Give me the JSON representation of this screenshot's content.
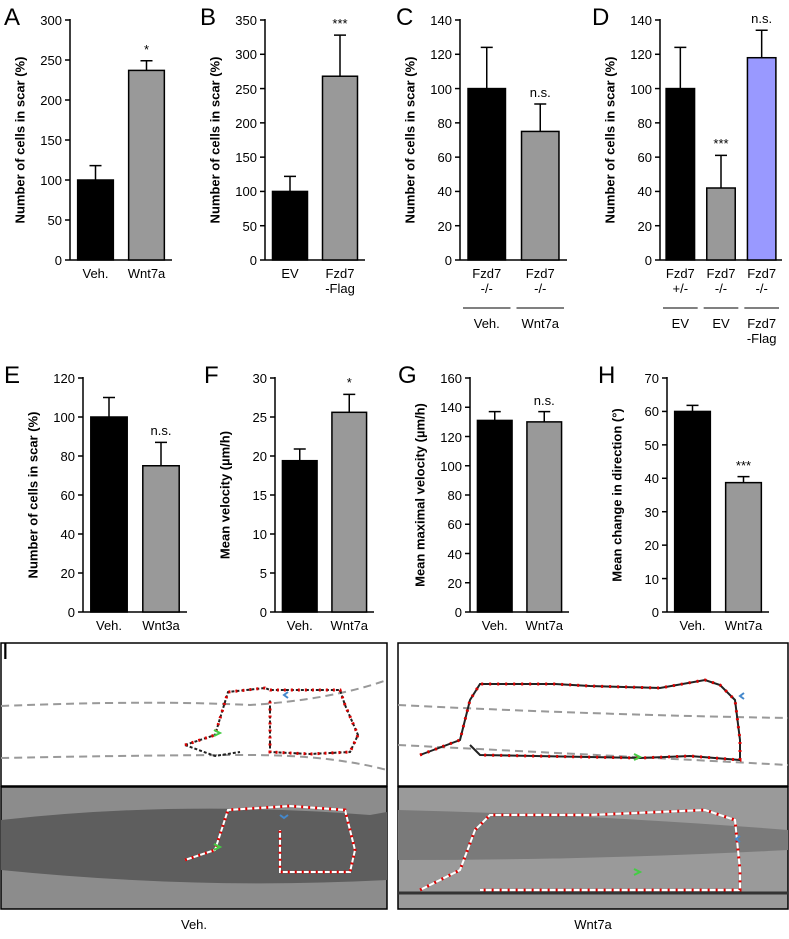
{
  "chart_data": [
    {
      "type": "bar",
      "panel": "A",
      "ylabel": "Number of cells in scar (%)",
      "categories": [
        "Veh.",
        "Wnt7a"
      ],
      "values": [
        100,
        237
      ],
      "errors": [
        18,
        12
      ],
      "annotations": [
        null,
        "*"
      ],
      "colors": [
        "#000000",
        "#999999"
      ],
      "ylim": [
        0,
        300
      ],
      "yticks": [
        0,
        50,
        100,
        150,
        200,
        250,
        300
      ]
    },
    {
      "type": "bar",
      "panel": "B",
      "ylabel": "Number of cells in scar (%)",
      "categories": [
        "EV",
        "Fzd7\n-Flag"
      ],
      "values": [
        100,
        268
      ],
      "errors": [
        22,
        60
      ],
      "annotations": [
        null,
        "***"
      ],
      "colors": [
        "#000000",
        "#999999"
      ],
      "ylim": [
        0,
        350
      ],
      "yticks": [
        0,
        50,
        100,
        150,
        200,
        250,
        300,
        350
      ]
    },
    {
      "type": "bar",
      "panel": "C",
      "ylabel": "Number of cells in scar (%)",
      "categories": [
        "Fzd7\n-/-",
        "Fzd7\n-/-"
      ],
      "groups": [
        "Veh.",
        "Wnt7a"
      ],
      "values": [
        100,
        75
      ],
      "errors": [
        24,
        16
      ],
      "annotations": [
        null,
        "n.s."
      ],
      "colors": [
        "#000000",
        "#999999"
      ],
      "ylim": [
        0,
        140
      ],
      "yticks": [
        0,
        20,
        40,
        60,
        80,
        100,
        120,
        140
      ]
    },
    {
      "type": "bar",
      "panel": "D",
      "ylabel": "Number of cells in scar (%)",
      "categories": [
        "Fzd7\n+/-",
        "Fzd7\n-/-",
        "Fzd7\n-/-"
      ],
      "groups": [
        "EV",
        "EV",
        "Fzd7\n-Flag"
      ],
      "values": [
        100,
        42,
        118
      ],
      "errors": [
        24,
        19,
        16
      ],
      "annotations": [
        null,
        "***",
        "n.s."
      ],
      "colors": [
        "#000000",
        "#999999",
        "#9999ff"
      ],
      "ylim": [
        0,
        140
      ],
      "yticks": [
        0,
        20,
        40,
        60,
        80,
        100,
        120,
        140
      ]
    },
    {
      "type": "bar",
      "panel": "E",
      "ylabel": "Number of cells in scar (%)",
      "categories": [
        "Veh.",
        "Wnt3a"
      ],
      "values": [
        100,
        75
      ],
      "errors": [
        10,
        12
      ],
      "annotations": [
        null,
        "n.s."
      ],
      "colors": [
        "#000000",
        "#999999"
      ],
      "ylim": [
        0,
        120
      ],
      "yticks": [
        0,
        20,
        40,
        60,
        80,
        100,
        120
      ]
    },
    {
      "type": "bar",
      "panel": "F",
      "ylabel": "Mean velocity (µm/h)",
      "categories": [
        "Veh.",
        "Wnt7a"
      ],
      "values": [
        19.4,
        25.6
      ],
      "errors": [
        1.5,
        2.3
      ],
      "annotations": [
        null,
        "*"
      ],
      "colors": [
        "#000000",
        "#999999"
      ],
      "ylim": [
        0,
        30
      ],
      "yticks": [
        0,
        5,
        10,
        15,
        20,
        25,
        30
      ]
    },
    {
      "type": "bar",
      "panel": "G",
      "ylabel": "Mean maximal velocity (µm/h)",
      "categories": [
        "Veh.",
        "Wnt7a"
      ],
      "values": [
        131,
        130
      ],
      "errors": [
        6,
        7
      ],
      "annotations": [
        null,
        "n.s."
      ],
      "colors": [
        "#000000",
        "#999999"
      ],
      "ylim": [
        0,
        160
      ],
      "yticks": [
        0,
        20,
        40,
        60,
        80,
        100,
        120,
        140,
        160
      ]
    },
    {
      "type": "bar",
      "panel": "H",
      "ylabel": "Mean change in direction (°)",
      "categories": [
        "Veh.",
        "Wnt7a"
      ],
      "values": [
        60,
        38.7
      ],
      "errors": [
        1.8,
        1.8
      ],
      "annotations": [
        null,
        "***"
      ],
      "colors": [
        "#000000",
        "#999999"
      ],
      "ylim": [
        0,
        70
      ],
      "yticks": [
        0,
        10,
        20,
        30,
        40,
        50,
        60,
        70
      ]
    }
  ],
  "panel_i": {
    "letter": "I",
    "captions": [
      "Veh.",
      "Wnt7a"
    ]
  }
}
